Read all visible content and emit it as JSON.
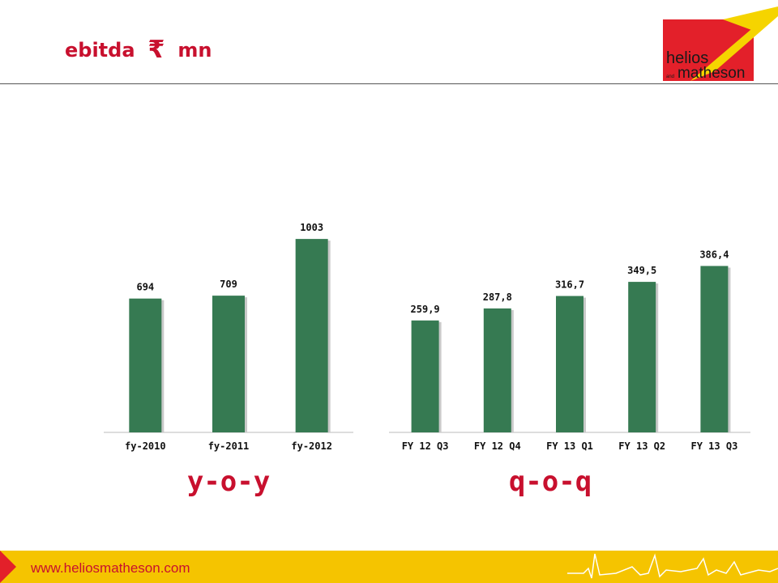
{
  "header": {
    "title_prefix": "ebitda",
    "currency_symbol": "₹",
    "title_suffix": "mn"
  },
  "logo": {
    "line1": "helios",
    "small": "and",
    "line2": "matheson",
    "colors": {
      "red": "#e3202a",
      "yellow": "#f5d400"
    }
  },
  "chart_data": [
    {
      "type": "bar",
      "categories": [
        "fy-2010",
        "fy-2011",
        "fy-2012"
      ],
      "values": [
        694,
        709,
        1003
      ],
      "value_labels": [
        "694",
        "709",
        "1003"
      ],
      "ylim": [
        0,
        1100
      ],
      "grid": false,
      "color": "#367a52",
      "caption": "y-o-y"
    },
    {
      "type": "bar",
      "categories": [
        "FY 12 Q3",
        "FY 12 Q4",
        "FY 13 Q1",
        "FY 13 Q2",
        "FY 13 Q3"
      ],
      "values": [
        259.9,
        287.8,
        316.7,
        349.5,
        386.4
      ],
      "value_labels": [
        "259,9",
        "287,8",
        "316,7",
        "349,5",
        "386,4"
      ],
      "ylim": [
        0,
        423
      ],
      "grid": false,
      "color": "#367a52",
      "caption": "q-o-q"
    }
  ],
  "footer": {
    "url": "www.heliosmatheson.com",
    "background": "#f5c400"
  }
}
